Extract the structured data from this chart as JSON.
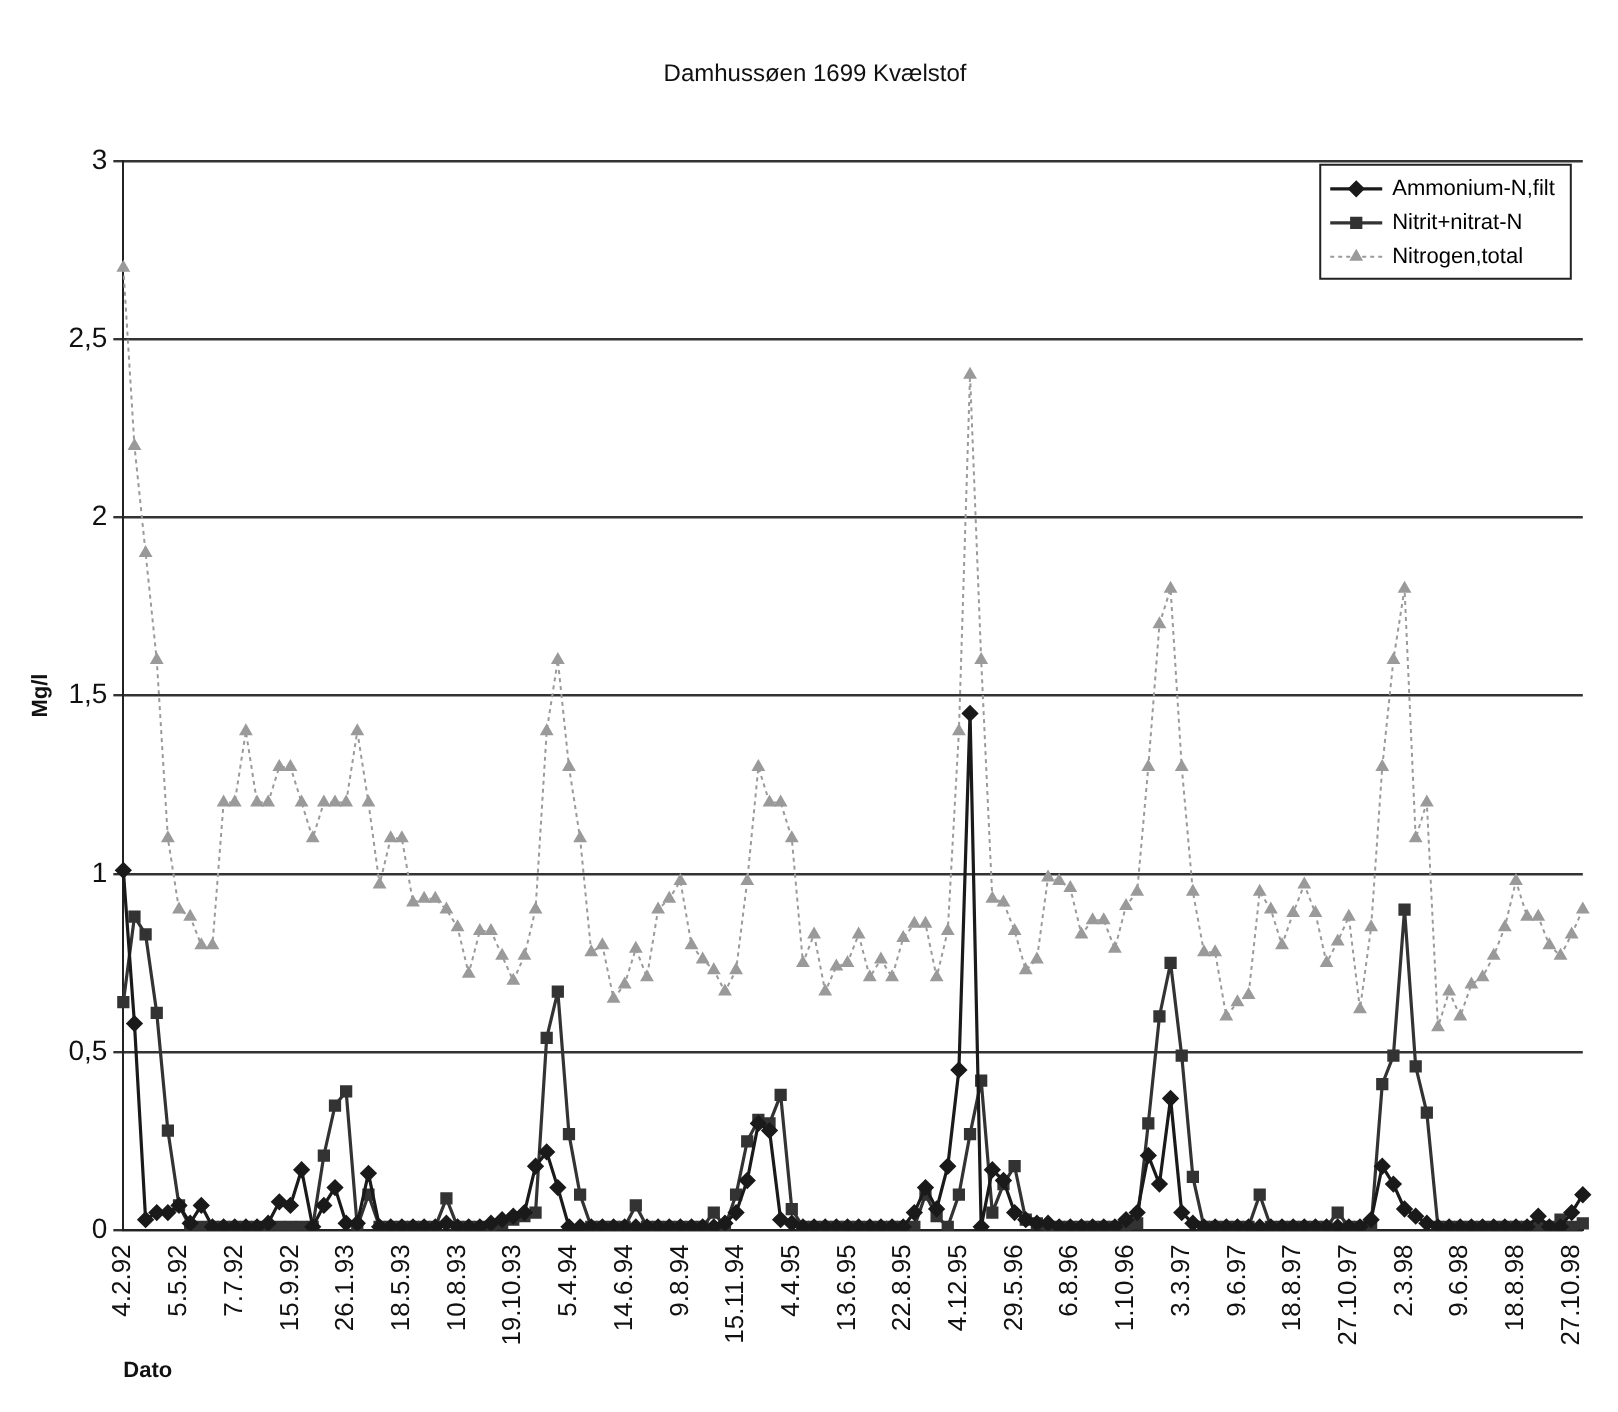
{
  "chart_data": {
    "type": "line",
    "title": "Damhussøen 1699 Kvælstof",
    "xlabel": "Dato",
    "ylabel": "Mg/l",
    "categories": [
      "4.2.92",
      null,
      null,
      null,
      null,
      "5.5.92",
      null,
      null,
      null,
      null,
      "7.7.92",
      null,
      null,
      null,
      null,
      "15.9.92",
      null,
      null,
      null,
      null,
      "26.1.93",
      null,
      null,
      null,
      null,
      "18.5.93",
      null,
      null,
      null,
      null,
      "10.8.93",
      null,
      null,
      null,
      null,
      "19.10.93",
      null,
      null,
      null,
      null,
      "5.4.94",
      null,
      null,
      null,
      null,
      "14.6.94",
      null,
      null,
      null,
      null,
      "9.8.94",
      null,
      null,
      null,
      null,
      "15.11.94",
      null,
      null,
      null,
      null,
      "4.4.95",
      null,
      null,
      null,
      null,
      "13.6.95",
      null,
      null,
      null,
      null,
      "22.8.95",
      null,
      null,
      null,
      null,
      "4.12.95",
      null,
      null,
      null,
      null,
      "29.5.96",
      null,
      null,
      null,
      null,
      "6.8.96",
      null,
      null,
      null,
      null,
      "1.10.96",
      null,
      null,
      null,
      null,
      "3.3.97",
      null,
      null,
      null,
      null,
      "9.6.97",
      null,
      null,
      null,
      null,
      "18.8.97",
      null,
      null,
      null,
      null,
      "27.10.97",
      null,
      null,
      null,
      null,
      "2.3.98",
      null,
      null,
      null,
      null,
      "9.6.98",
      null,
      null,
      null,
      null,
      "18.8.98",
      null,
      null,
      null,
      null,
      "27.10.98",
      null
    ],
    "series": [
      {
        "name": "Ammonium-N,filt",
        "color": "#1a1a1a",
        "marker": "diamond",
        "line_style": "solid",
        "values": [
          1.01,
          0.58,
          0.03,
          0.05,
          0.05,
          0.07,
          0.02,
          0.07,
          0.01,
          0.01,
          0.01,
          0.01,
          0.01,
          0.02,
          0.08,
          0.07,
          0.17,
          0.01,
          0.07,
          0.12,
          0.02,
          0.02,
          0.16,
          0.01,
          0.01,
          0.01,
          0.01,
          0.01,
          0.01,
          0.02,
          0.01,
          0.01,
          0.01,
          0.02,
          0.03,
          0.04,
          0.05,
          0.18,
          0.22,
          0.12,
          0.01,
          0.01,
          0.01,
          0.01,
          0.01,
          0.01,
          0.01,
          0.01,
          0.01,
          0.01,
          0.01,
          0.01,
          0.01,
          0.01,
          0.02,
          0.05,
          0.14,
          0.3,
          0.28,
          0.03,
          0.02,
          0.01,
          0.01,
          0.01,
          0.01,
          0.01,
          0.01,
          0.01,
          0.01,
          0.01,
          0.01,
          0.05,
          0.12,
          0.06,
          0.18,
          0.45,
          1.45,
          0.01,
          0.17,
          0.14,
          0.05,
          0.03,
          0.02,
          0.02,
          0.01,
          0.01,
          0.01,
          0.01,
          0.01,
          0.01,
          0.03,
          0.05,
          0.21,
          0.13,
          0.37,
          0.05,
          0.02,
          0.01,
          0.01,
          0.01,
          0.01,
          0.01,
          0.01,
          0.01,
          0.01,
          0.01,
          0.01,
          0.01,
          0.01,
          0.01,
          0.01,
          0.01,
          0.03,
          0.18,
          0.13,
          0.06,
          0.04,
          0.02,
          0.01,
          0.01,
          0.01,
          0.01,
          0.01,
          0.01,
          0.01,
          0.01,
          0.01,
          0.04,
          0.01,
          0.01,
          0.05,
          0.1
        ]
      },
      {
        "name": "Nitrit+nitrat-N",
        "color": "#333333",
        "marker": "square",
        "line_style": "solid",
        "values": [
          0.64,
          0.88,
          0.83,
          0.61,
          0.28,
          0.07,
          0.01,
          0.01,
          0.01,
          0.01,
          0.01,
          0.01,
          0.01,
          0.01,
          0.01,
          0.01,
          0.01,
          0.01,
          0.21,
          0.35,
          0.39,
          0.01,
          0.1,
          0.01,
          0.01,
          0.01,
          0.01,
          0.01,
          0.01,
          0.09,
          0.01,
          0.01,
          0.01,
          0.01,
          0.02,
          0.03,
          0.04,
          0.05,
          0.54,
          0.67,
          0.27,
          0.1,
          0.01,
          0.01,
          0.01,
          0.01,
          0.07,
          0.01,
          0.01,
          0.01,
          0.01,
          0.01,
          0.01,
          0.05,
          0.01,
          0.1,
          0.25,
          0.31,
          0.3,
          0.38,
          0.06,
          0.01,
          0.01,
          0.01,
          0.01,
          0.01,
          0.01,
          0.01,
          0.01,
          0.01,
          0.01,
          0.01,
          0.1,
          0.04,
          0.01,
          0.1,
          0.27,
          0.42,
          0.05,
          0.13,
          0.18,
          0.03,
          0.02,
          0.01,
          0.01,
          0.01,
          0.01,
          0.01,
          0.01,
          0.01,
          0.01,
          0.02,
          0.3,
          0.6,
          0.75,
          0.49,
          0.15,
          0.01,
          0.01,
          0.01,
          0.01,
          0.01,
          0.1,
          0.01,
          0.01,
          0.01,
          0.01,
          0.01,
          0.01,
          0.05,
          0.01,
          0.01,
          0.01,
          0.41,
          0.49,
          0.9,
          0.46,
          0.33,
          0.01,
          0.01,
          0.01,
          0.01,
          0.01,
          0.01,
          0.01,
          0.01,
          0.01,
          0.01,
          0.01,
          0.03,
          0.01,
          0.02
        ]
      },
      {
        "name": "Nitrogen,total",
        "color": "#9a9a9a",
        "marker": "triangle",
        "line_style": "dotted",
        "values": [
          2.7,
          2.2,
          1.9,
          1.6,
          1.1,
          0.9,
          0.88,
          0.8,
          0.8,
          1.2,
          1.2,
          1.4,
          1.2,
          1.2,
          1.3,
          1.3,
          1.2,
          1.1,
          1.2,
          1.2,
          1.2,
          1.4,
          1.2,
          0.97,
          1.1,
          1.1,
          0.92,
          0.93,
          0.93,
          0.9,
          0.85,
          0.72,
          0.84,
          0.84,
          0.77,
          0.7,
          0.77,
          0.9,
          1.4,
          1.6,
          1.3,
          1.1,
          0.78,
          0.8,
          0.65,
          0.69,
          0.79,
          0.71,
          0.9,
          0.93,
          0.98,
          0.8,
          0.76,
          0.73,
          0.67,
          0.73,
          0.98,
          1.3,
          1.2,
          1.2,
          1.1,
          0.75,
          0.83,
          0.67,
          0.74,
          0.75,
          0.83,
          0.71,
          0.76,
          0.71,
          0.82,
          0.86,
          0.86,
          0.71,
          0.84,
          1.4,
          2.4,
          1.6,
          0.93,
          0.92,
          0.84,
          0.73,
          0.76,
          0.99,
          0.98,
          0.96,
          0.83,
          0.87,
          0.87,
          0.79,
          0.91,
          0.95,
          1.3,
          1.7,
          1.8,
          1.3,
          0.95,
          0.78,
          0.78,
          0.6,
          0.64,
          0.66,
          0.95,
          0.9,
          0.8,
          0.89,
          0.97,
          0.89,
          0.75,
          0.81,
          0.88,
          0.62,
          0.85,
          1.3,
          1.6,
          1.8,
          1.1,
          1.2,
          0.57,
          0.67,
          0.6,
          0.69,
          0.71,
          0.77,
          0.85,
          0.98,
          0.88,
          0.88,
          0.8,
          0.77,
          0.83,
          0.9
        ]
      }
    ],
    "ylim": [
      0,
      3
    ],
    "yticks": [
      0,
      {
        "value": 0.5,
        "label": "0,5"
      },
      1,
      {
        "value": 1.5,
        "label": "1,5"
      },
      2,
      {
        "value": 2.5,
        "label": "2,5"
      },
      3
    ],
    "grid": "y",
    "legend": "top right"
  }
}
